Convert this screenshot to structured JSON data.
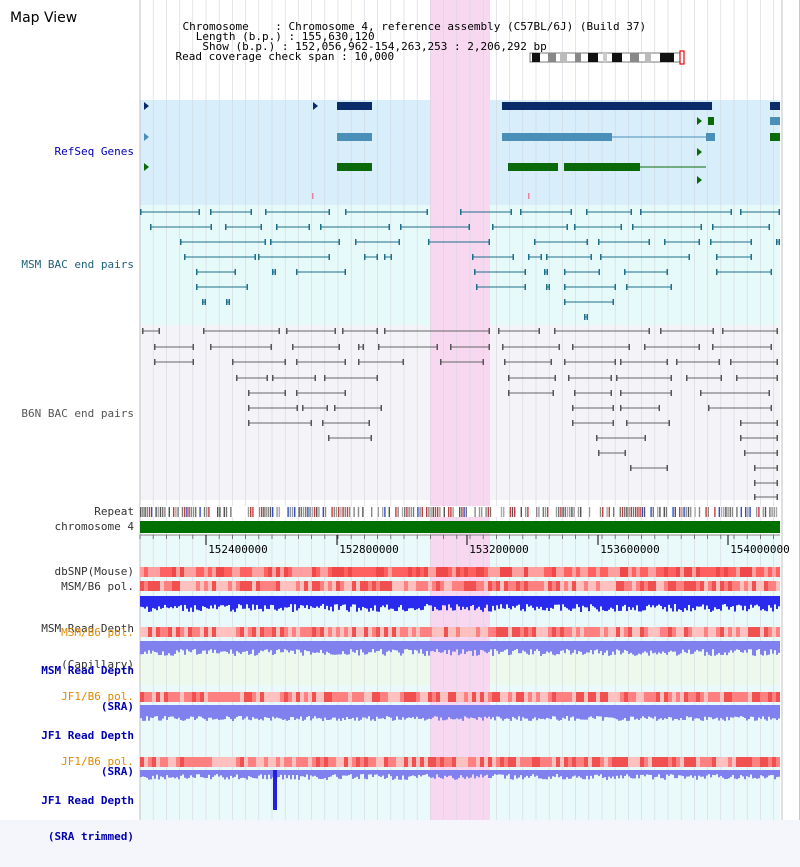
{
  "title": "Map View",
  "info": {
    "chromosome_key": "Chromosome",
    "chromosome_value": "Chromosome 4, reference assembly (C57BL/6J) (Build 37)",
    "length_key": "Length (b.p.)",
    "length_value": "155,630,120",
    "show_key": "Show (b.p.)",
    "show_value": "152,056,962-154,263,253 : 2,206,292 bp",
    "coverage_key": "Read coverage check span",
    "coverage_value": "10,000"
  },
  "tracks": {
    "refseq": "RefSeq Genes",
    "msm_bac": "MSM BAC end pairs",
    "b6n_bac": "B6N BAC end pairs",
    "repeat": "Repeat",
    "chromosome": "chromosome 4",
    "dbsnp": "dbSNP(Mouse)",
    "msm_b6_pol_1": "MSM/B6 pol.",
    "msm_depth_cap_1": "MSM Read Depth",
    "msm_depth_cap_2": "(Capillary)",
    "msm_b6_pol_2": "MSM/B6 pol.",
    "msm_depth_sra_1": "MSM Read Depth",
    "msm_depth_sra_2": "(SRA)",
    "jf1_b6_pol_1": "JF1/B6 pol.",
    "jf1_depth_sra_1": "JF1 Read Depth",
    "jf1_depth_sra_2": "(SRA)",
    "jf1_b6_pol_2": "JF1/B6 pol.",
    "jf1_depth_trim_1": "JF1 Read Depth",
    "jf1_depth_trim_2": "(SRA trimmed)"
  },
  "axis": {
    "ticks": [
      "152400000",
      "152800000",
      "153200000",
      "153600000",
      "154000000"
    ]
  },
  "colors": {
    "highlight": "#f8d8f0",
    "refseq_bg": "#d8eefa",
    "msm_bg": "#e6fafa",
    "b6n_bg": "#f4f4f8",
    "gene_navy": "#0a2a6a",
    "gene_steel": "#4a8fb8",
    "gene_green": "#0a6a0a",
    "chrom_green": "#007000",
    "depth_blue": "#2a2aee",
    "depth_light": "#8080ee",
    "pol_red": "#ee5050"
  }
}
